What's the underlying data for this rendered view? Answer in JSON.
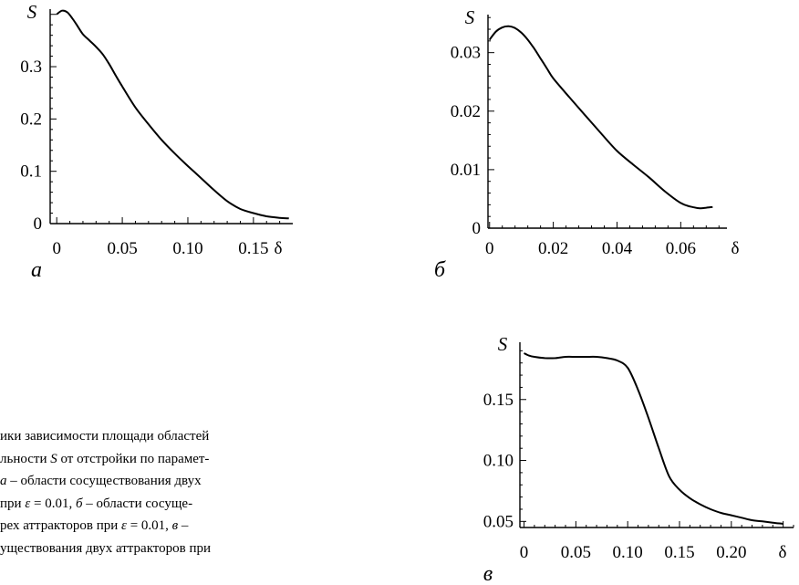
{
  "chart_data": [
    {
      "panel": "a",
      "type": "line",
      "ylabel": "S",
      "xlabel": "δ",
      "panel_label": "а",
      "xlim": [
        -0.005,
        0.18
      ],
      "ylim": [
        0,
        0.41
      ],
      "x_ticks": [
        0,
        0.05,
        0.1,
        0.15
      ],
      "x_tick_labels": [
        "0",
        "0.05",
        "0.10",
        "0.15"
      ],
      "y_ticks": [
        0,
        0.1,
        0.2,
        0.3
      ],
      "y_tick_labels": [
        "0",
        "0.1",
        "0.2",
        "0.3"
      ],
      "grid": false,
      "series": [
        {
          "x": [
            0,
            0.004,
            0.008,
            0.012,
            0.016,
            0.02,
            0.025,
            0.03,
            0.035,
            0.04,
            0.045,
            0.05,
            0.06,
            0.07,
            0.08,
            0.09,
            0.1,
            0.11,
            0.12,
            0.13,
            0.14,
            0.15,
            0.16,
            0.17,
            0.177
          ],
          "y": [
            0.4,
            0.407,
            0.404,
            0.392,
            0.377,
            0.362,
            0.35,
            0.338,
            0.324,
            0.305,
            0.283,
            0.262,
            0.222,
            0.19,
            0.16,
            0.134,
            0.11,
            0.087,
            0.064,
            0.043,
            0.028,
            0.02,
            0.014,
            0.011,
            0.01
          ]
        }
      ]
    },
    {
      "panel": "b",
      "type": "line",
      "ylabel": "S",
      "xlabel": "δ",
      "panel_label": "б",
      "xlim": [
        -0.0005,
        0.0745
      ],
      "ylim": [
        0,
        0.0365
      ],
      "x_ticks": [
        0,
        0.02,
        0.04,
        0.06
      ],
      "x_tick_labels": [
        "0",
        "0.02",
        "0.04",
        "0.06"
      ],
      "y_ticks": [
        0,
        0.01,
        0.02,
        0.03
      ],
      "y_tick_labels": [
        "0",
        "0.01",
        "0.02",
        "0.03"
      ],
      "grid": false,
      "series": [
        {
          "x": [
            0,
            0.002,
            0.004,
            0.006,
            0.008,
            0.01,
            0.012,
            0.014,
            0.016,
            0.018,
            0.02,
            0.025,
            0.03,
            0.035,
            0.04,
            0.045,
            0.05,
            0.055,
            0.06,
            0.063,
            0.066,
            0.068,
            0.07
          ],
          "y": [
            0.0322,
            0.0336,
            0.0343,
            0.0345,
            0.0342,
            0.0334,
            0.0322,
            0.0307,
            0.029,
            0.0273,
            0.0256,
            0.0224,
            0.0193,
            0.0162,
            0.0132,
            0.0109,
            0.0087,
            0.0063,
            0.0043,
            0.0037,
            0.0034,
            0.0035,
            0.0036
          ]
        }
      ]
    },
    {
      "panel": "c",
      "type": "line",
      "ylabel": "S",
      "xlabel": "δ",
      "panel_label": "в",
      "xlim": [
        -0.004,
        0.26
      ],
      "ylim": [
        0.045,
        0.197
      ],
      "x_ticks": [
        0,
        0.05,
        0.1,
        0.15,
        0.2
      ],
      "x_tick_labels": [
        "0",
        "0.05",
        "0.10",
        "0.15",
        "0.20"
      ],
      "y_ticks": [
        0.05,
        0.1,
        0.15
      ],
      "y_tick_labels": [
        "0.05",
        "0.10",
        "0.15"
      ],
      "grid": false,
      "series": [
        {
          "x": [
            0,
            0.005,
            0.01,
            0.02,
            0.03,
            0.04,
            0.05,
            0.06,
            0.07,
            0.08,
            0.09,
            0.1,
            0.11,
            0.12,
            0.13,
            0.14,
            0.15,
            0.16,
            0.17,
            0.18,
            0.19,
            0.2,
            0.21,
            0.22,
            0.23,
            0.24,
            0.25
          ],
          "y": [
            0.188,
            0.186,
            0.185,
            0.184,
            0.184,
            0.185,
            0.185,
            0.185,
            0.185,
            0.184,
            0.182,
            0.176,
            0.158,
            0.135,
            0.11,
            0.087,
            0.076,
            0.069,
            0.064,
            0.06,
            0.057,
            0.055,
            0.053,
            0.051,
            0.05,
            0.049,
            0.048
          ]
        }
      ]
    }
  ],
  "caption_lines": [
    [
      "ики зависимости площади областей",
      ""
    ],
    [
      "льности ",
      "S",
      " от отстройки по парамет-"
    ],
    [
      "",
      "а",
      " – области сосуществования двух"
    ],
    [
      " при ",
      "ε",
      " = 0.01, ",
      "б",
      " – области сосуще-"
    ],
    [
      "рех аттракторов при ",
      "ε",
      " = 0.01, ",
      "в",
      " –"
    ],
    [
      "уществования двух аттракторов при"
    ]
  ]
}
